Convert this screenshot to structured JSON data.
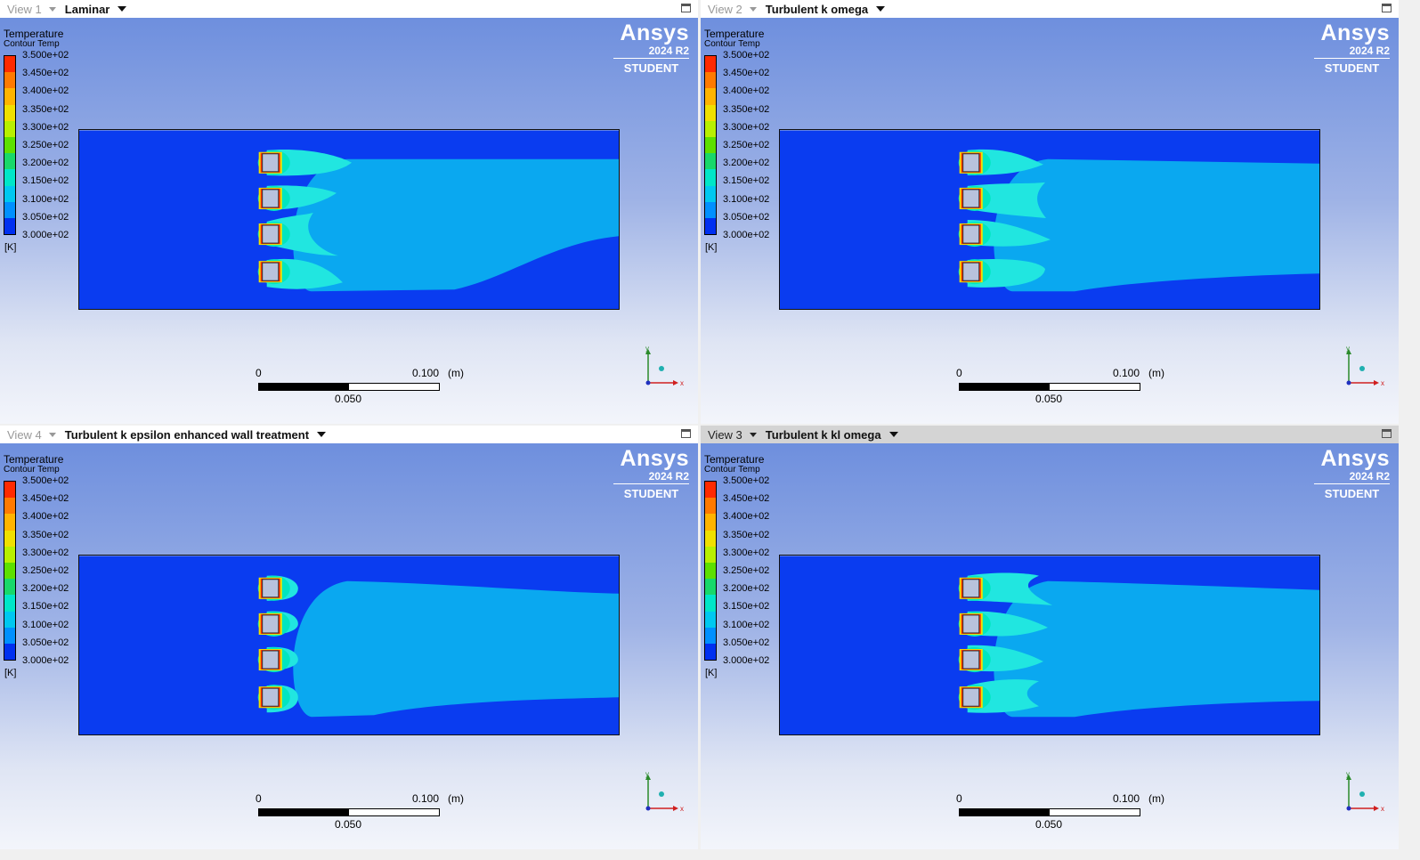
{
  "views": [
    {
      "view_label": "View 1",
      "selection": "Laminar",
      "active": false
    },
    {
      "view_label": "View 2",
      "selection": "Turbulent k omega",
      "active": false
    },
    {
      "view_label": "View 4",
      "selection": "Turbulent k epsilon enhanced wall treatment",
      "active": false
    },
    {
      "view_label": "View 3",
      "selection": "Turbulent k kl omega",
      "active": true
    }
  ],
  "legend": {
    "title": "Temperature",
    "subtitle": "Contour Temp",
    "unit": "[K]",
    "ticks": [
      "3.500e+02",
      "3.450e+02",
      "3.400e+02",
      "3.350e+02",
      "3.300e+02",
      "3.250e+02",
      "3.200e+02",
      "3.150e+02",
      "3.100e+02",
      "3.050e+02",
      "3.000e+02"
    ],
    "colors": [
      "#ff2a00",
      "#ff7a00",
      "#ffb400",
      "#f0e000",
      "#b8f000",
      "#5de000",
      "#18d86a",
      "#00e6c8",
      "#00c8f0",
      "#0090ff",
      "#0030f0"
    ]
  },
  "branding": {
    "name": "Ansys",
    "version": "2024 R2",
    "edition": "STUDENT"
  },
  "scale": {
    "start": "0",
    "end": "0.100",
    "unit": "(m)",
    "mid": "0.050"
  },
  "axis_labels": {
    "y": "y",
    "x": "x"
  }
}
